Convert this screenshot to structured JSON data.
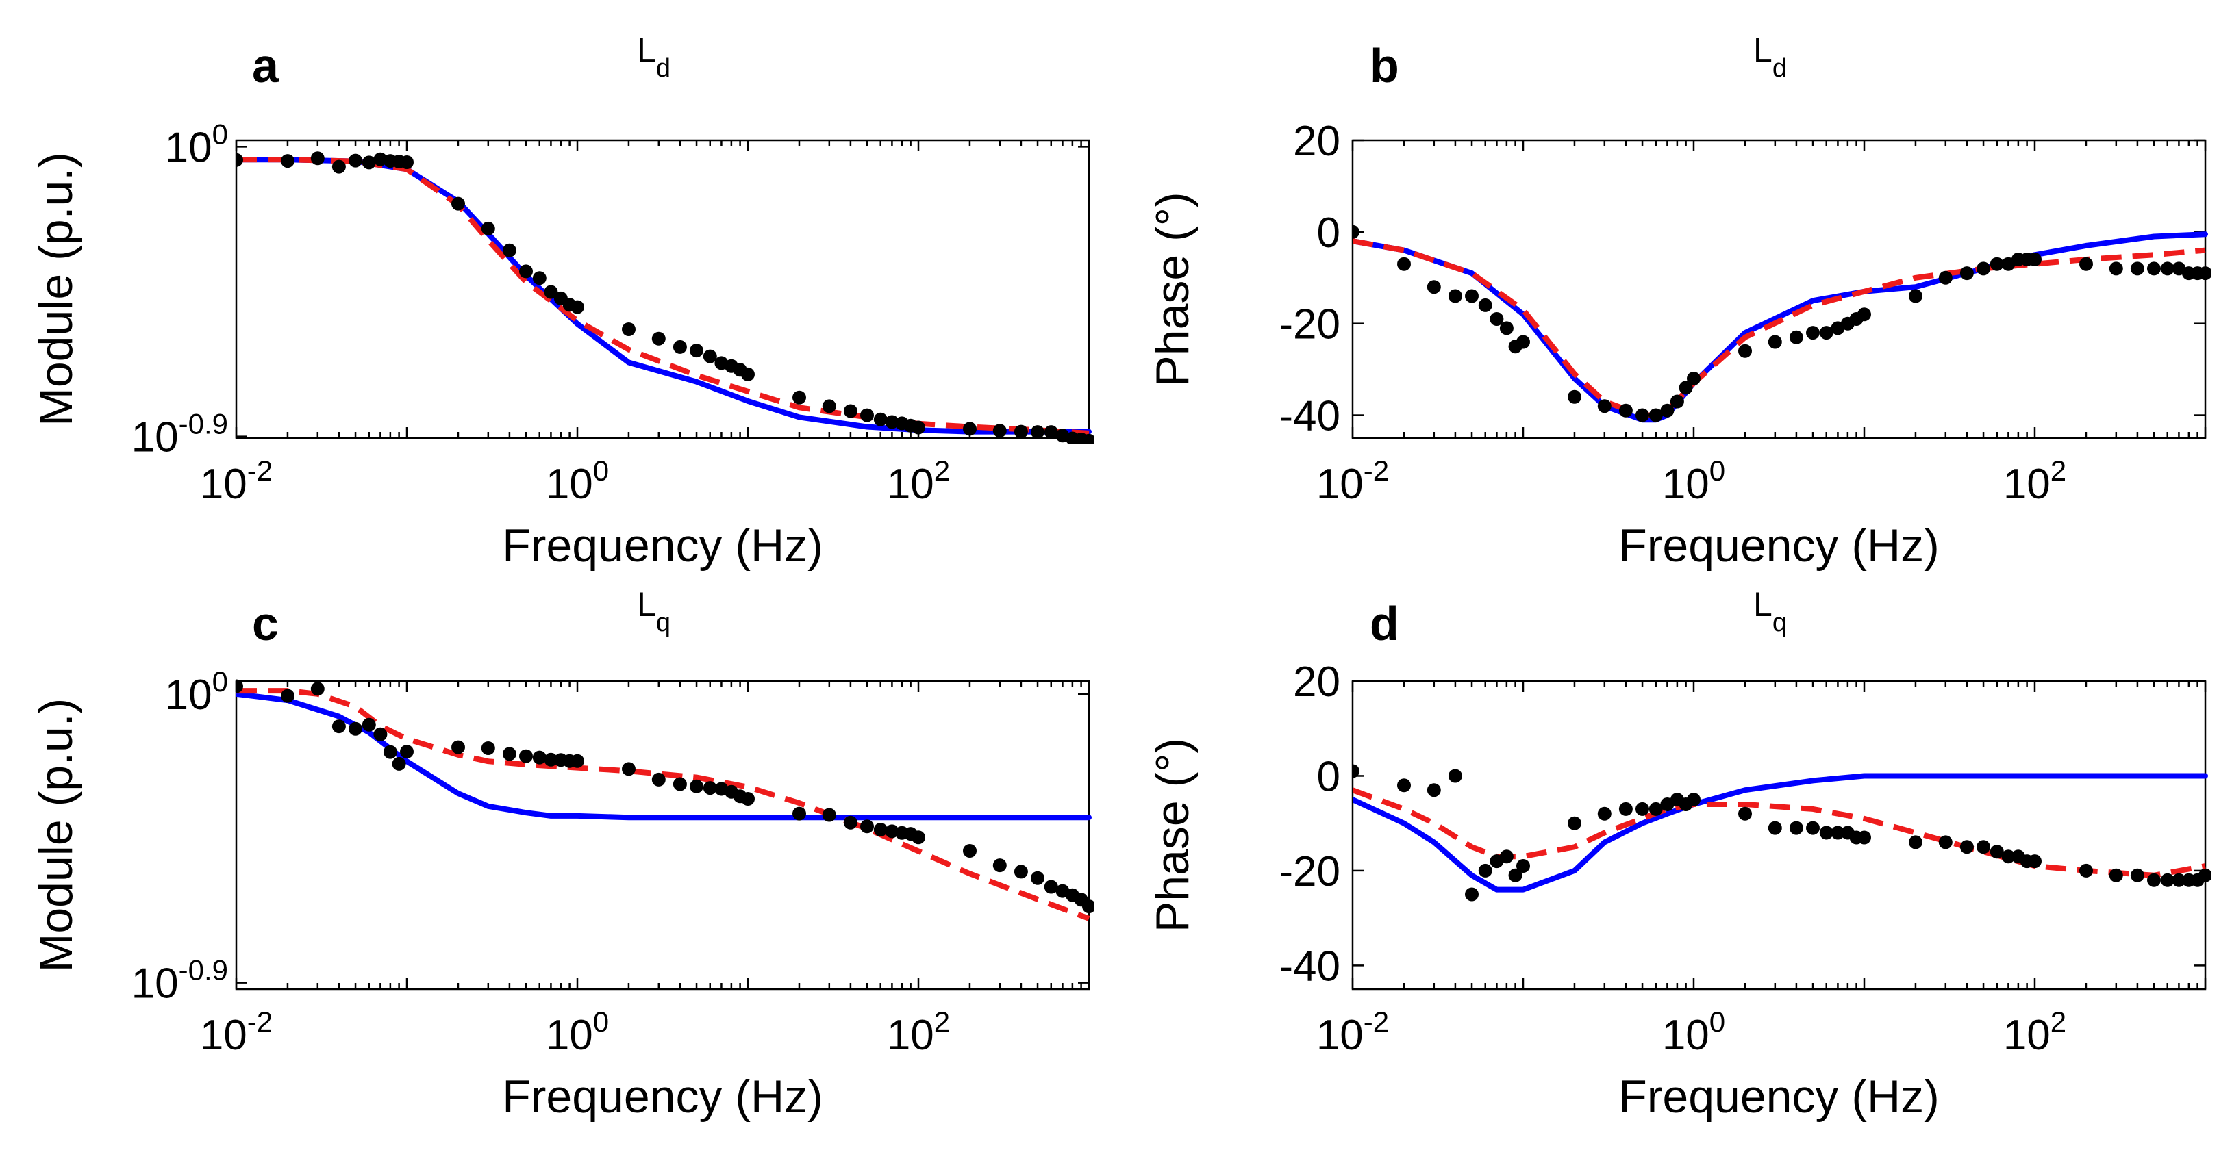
{
  "figure": {
    "colors": {
      "measured": "#000000",
      "model_a": "#0000ff",
      "model_b": "#ee1c1c"
    }
  },
  "chart_data": [
    {
      "type": "line",
      "panel": "a",
      "title": "L",
      "title_sub": "d",
      "xlabel": "Frequency (Hz)",
      "ylabel": "Module (p.u.)",
      "xscale": "log",
      "yscale": "log",
      "xlim": [
        0.01,
        1000
      ],
      "ylim_log10": [
        -0.905,
        0.02
      ],
      "xticks": [
        {
          "base": "10",
          "exp": "-2",
          "value": 0.01
        },
        {
          "base": "10",
          "exp": "0",
          "value": 1
        },
        {
          "base": "10",
          "exp": "2",
          "value": 100
        }
      ],
      "yticks": [
        {
          "base": "10",
          "exp": "0",
          "log10": 0
        },
        {
          "base": "10",
          "exp": "-0.9",
          "log10": -0.9
        }
      ],
      "grid": false,
      "series": [
        {
          "style": "dots",
          "x": [
            0.01,
            0.02,
            0.03,
            0.04,
            0.05,
            0.06,
            0.07,
            0.08,
            0.09,
            0.1,
            0.2,
            0.3,
            0.4,
            0.5,
            0.6,
            0.7,
            0.8,
            0.9,
            1,
            2,
            3,
            4,
            5,
            6,
            7,
            8,
            9,
            10,
            20,
            30,
            40,
            50,
            60,
            70,
            80,
            90,
            100,
            200,
            300,
            400,
            500,
            600,
            700,
            800,
            900,
            1000
          ],
          "y": [
            -0.041,
            -0.044,
            -0.036,
            -0.062,
            -0.043,
            -0.049,
            -0.039,
            -0.044,
            -0.046,
            -0.048,
            -0.177,
            -0.254,
            -0.322,
            -0.387,
            -0.408,
            -0.451,
            -0.471,
            -0.491,
            -0.498,
            -0.567,
            -0.596,
            -0.622,
            -0.633,
            -0.651,
            -0.672,
            -0.681,
            -0.693,
            -0.707,
            -0.779,
            -0.806,
            -0.821,
            -0.834,
            -0.847,
            -0.855,
            -0.859,
            -0.866,
            -0.872,
            -0.876,
            -0.882,
            -0.885,
            -0.886,
            -0.886,
            -0.897,
            -0.906,
            -0.909,
            -0.913
          ]
        },
        {
          "style": "solid",
          "x": [
            0.01,
            0.02,
            0.05,
            0.1,
            0.2,
            0.3,
            0.5,
            1,
            2,
            5,
            10,
            20,
            50,
            100,
            200,
            500,
            1000
          ],
          "y": [
            -0.04,
            -0.04,
            -0.045,
            -0.07,
            -0.17,
            -0.27,
            -0.4,
            -0.55,
            -0.67,
            -0.73,
            -0.79,
            -0.84,
            -0.87,
            -0.88,
            -0.885,
            -0.885,
            -0.885
          ]
        },
        {
          "style": "dashed",
          "x": [
            0.01,
            0.02,
            0.05,
            0.1,
            0.2,
            0.3,
            0.5,
            1,
            2,
            5,
            10,
            20,
            50,
            100,
            200,
            500,
            1000
          ],
          "y": [
            -0.04,
            -0.04,
            -0.045,
            -0.07,
            -0.18,
            -0.29,
            -0.42,
            -0.54,
            -0.63,
            -0.71,
            -0.76,
            -0.81,
            -0.84,
            -0.86,
            -0.87,
            -0.88,
            -0.89
          ]
        }
      ]
    },
    {
      "type": "line",
      "panel": "b",
      "title": "L",
      "title_sub": "d",
      "xlabel": "Frequency (Hz)",
      "ylabel": "Phase (°)",
      "xscale": "log",
      "yscale": "linear",
      "xlim": [
        0.01,
        1000
      ],
      "ylim": [
        -45,
        20
      ],
      "xticks": [
        {
          "base": "10",
          "exp": "-2",
          "value": 0.01
        },
        {
          "base": "10",
          "exp": "0",
          "value": 1
        },
        {
          "base": "10",
          "exp": "2",
          "value": 100
        }
      ],
      "yticks": [
        20,
        0,
        -20,
        -40
      ],
      "grid": false,
      "series": [
        {
          "style": "dots",
          "x": [
            0.01,
            0.02,
            0.03,
            0.04,
            0.05,
            0.06,
            0.07,
            0.08,
            0.09,
            0.1,
            0.2,
            0.3,
            0.4,
            0.5,
            0.6,
            0.7,
            0.8,
            0.9,
            1,
            2,
            3,
            4,
            5,
            6,
            7,
            8,
            9,
            10,
            20,
            30,
            40,
            50,
            60,
            70,
            80,
            90,
            100,
            200,
            300,
            400,
            500,
            600,
            700,
            800,
            900,
            1000
          ],
          "y": [
            0,
            -7,
            -12,
            -14,
            -14,
            -16,
            -19,
            -21,
            -25,
            -24,
            -36,
            -38,
            -39,
            -40,
            -40,
            -39,
            -37,
            -34,
            -32,
            -26,
            -24,
            -23,
            -22,
            -22,
            -21,
            -20,
            -19,
            -18,
            -14,
            -10,
            -9,
            -8,
            -7,
            -7,
            -6,
            -6,
            -6,
            -7,
            -8,
            -8,
            -8,
            -8,
            -8,
            -9,
            -9,
            -9
          ]
        },
        {
          "style": "solid",
          "x": [
            0.01,
            0.02,
            0.05,
            0.1,
            0.2,
            0.3,
            0.5,
            0.6,
            0.7,
            1,
            2,
            5,
            10,
            20,
            50,
            100,
            200,
            500,
            1000
          ],
          "y": [
            -2,
            -4,
            -9,
            -18,
            -32,
            -38,
            -41,
            -41,
            -40,
            -33,
            -22,
            -15,
            -13,
            -12,
            -8,
            -5,
            -3,
            -1,
            -0.5
          ]
        },
        {
          "style": "dashed",
          "x": [
            0.01,
            0.02,
            0.05,
            0.1,
            0.2,
            0.3,
            0.5,
            0.6,
            0.7,
            1,
            2,
            5,
            10,
            20,
            50,
            100,
            200,
            500,
            1000
          ],
          "y": [
            -2,
            -4,
            -9,
            -17,
            -31,
            -37,
            -40,
            -40,
            -39,
            -33,
            -23,
            -16,
            -13,
            -10,
            -8,
            -7,
            -6,
            -5,
            -4
          ]
        }
      ]
    },
    {
      "type": "line",
      "panel": "c",
      "title": "L",
      "title_sub": "q",
      "xlabel": "Frequency (Hz)",
      "ylabel": "Module (p.u.)",
      "xscale": "log",
      "yscale": "log",
      "xlim": [
        0.01,
        1000
      ],
      "ylim_log10": [
        -0.92,
        0.04
      ],
      "xticks": [
        {
          "base": "10",
          "exp": "-2",
          "value": 0.01
        },
        {
          "base": "10",
          "exp": "0",
          "value": 1
        },
        {
          "base": "10",
          "exp": "2",
          "value": 100
        }
      ],
      "yticks": [
        {
          "base": "10",
          "exp": "0",
          "log10": 0
        },
        {
          "base": "10",
          "exp": "-0.9",
          "log10": -0.9
        }
      ],
      "grid": false,
      "series": [
        {
          "style": "dots",
          "x": [
            0.01,
            0.02,
            0.03,
            0.04,
            0.05,
            0.06,
            0.07,
            0.08,
            0.09,
            0.1,
            0.2,
            0.3,
            0.4,
            0.5,
            0.6,
            0.7,
            0.8,
            0.9,
            1,
            2,
            3,
            4,
            5,
            6,
            7,
            8,
            9,
            10,
            20,
            30,
            40,
            50,
            60,
            70,
            80,
            90,
            100,
            200,
            300,
            400,
            500,
            600,
            700,
            800,
            900,
            1000
          ],
          "y": [
            0.024,
            -0.006,
            0.016,
            -0.101,
            -0.109,
            -0.096,
            -0.126,
            -0.181,
            -0.218,
            -0.18,
            -0.166,
            -0.169,
            -0.187,
            -0.194,
            -0.198,
            -0.205,
            -0.206,
            -0.209,
            -0.209,
            -0.234,
            -0.267,
            -0.281,
            -0.288,
            -0.293,
            -0.296,
            -0.305,
            -0.319,
            -0.327,
            -0.373,
            -0.377,
            -0.401,
            -0.413,
            -0.423,
            -0.428,
            -0.433,
            -0.436,
            -0.447,
            -0.489,
            -0.534,
            -0.554,
            -0.574,
            -0.601,
            -0.614,
            -0.627,
            -0.641,
            -0.662
          ]
        },
        {
          "style": "solid",
          "x": [
            0.01,
            0.02,
            0.04,
            0.06,
            0.1,
            0.2,
            0.3,
            0.5,
            0.7,
            1,
            2,
            5,
            10,
            100,
            1000
          ],
          "y": [
            0,
            -0.02,
            -0.07,
            -0.12,
            -0.21,
            -0.31,
            -0.35,
            -0.37,
            -0.38,
            -0.38,
            -0.385,
            -0.385,
            -0.385,
            -0.385,
            -0.385
          ]
        },
        {
          "style": "dashed",
          "x": [
            0.01,
            0.02,
            0.03,
            0.05,
            0.07,
            0.1,
            0.2,
            0.3,
            0.5,
            1,
            2,
            5,
            10,
            20,
            50,
            100,
            200,
            500,
            1000
          ],
          "y": [
            0.01,
            0.01,
            0,
            -0.04,
            -0.1,
            -0.14,
            -0.19,
            -0.21,
            -0.22,
            -0.23,
            -0.24,
            -0.26,
            -0.29,
            -0.34,
            -0.42,
            -0.49,
            -0.56,
            -0.64,
            -0.7
          ]
        }
      ]
    },
    {
      "type": "line",
      "panel": "d",
      "title": "L",
      "title_sub": "q",
      "xlabel": "Frequency (Hz)",
      "ylabel": "Phase (°)",
      "xscale": "log",
      "yscale": "linear",
      "xlim": [
        0.01,
        1000
      ],
      "ylim": [
        -45,
        20
      ],
      "xticks": [
        {
          "base": "10",
          "exp": "-2",
          "value": 0.01
        },
        {
          "base": "10",
          "exp": "0",
          "value": 1
        },
        {
          "base": "10",
          "exp": "2",
          "value": 100
        }
      ],
      "yticks": [
        20,
        0,
        -20,
        -40
      ],
      "grid": false,
      "series": [
        {
          "style": "dots",
          "x": [
            0.01,
            0.02,
            0.03,
            0.04,
            0.05,
            0.06,
            0.07,
            0.08,
            0.09,
            0.1,
            0.2,
            0.3,
            0.4,
            0.5,
            0.6,
            0.7,
            0.8,
            0.9,
            1,
            2,
            3,
            4,
            5,
            6,
            7,
            8,
            9,
            10,
            20,
            30,
            40,
            50,
            60,
            70,
            80,
            90,
            100,
            200,
            300,
            400,
            500,
            600,
            700,
            800,
            900,
            1000
          ],
          "y": [
            1,
            -2,
            -3,
            0,
            -25,
            -20,
            -18,
            -17,
            -21,
            -19,
            -10,
            -8,
            -7,
            -7,
            -7,
            -6,
            -5,
            -6,
            -5,
            -8,
            -11,
            -11,
            -11,
            -12,
            -12,
            -12,
            -13,
            -13,
            -14,
            -14,
            -15,
            -15,
            -16,
            -17,
            -17,
            -18,
            -18,
            -20,
            -21,
            -21,
            -22,
            -22,
            -22,
            -22,
            -22,
            -21
          ]
        },
        {
          "style": "solid",
          "x": [
            0.01,
            0.02,
            0.03,
            0.05,
            0.07,
            0.1,
            0.2,
            0.3,
            0.5,
            0.7,
            1,
            2,
            5,
            10,
            20,
            100,
            1000
          ],
          "y": [
            -5,
            -10,
            -14,
            -21,
            -24,
            -24,
            -20,
            -14,
            -10,
            -8,
            -6,
            -3,
            -1,
            0,
            0,
            0,
            0
          ]
        },
        {
          "style": "dashed",
          "x": [
            0.01,
            0.02,
            0.03,
            0.05,
            0.07,
            0.1,
            0.2,
            0.3,
            0.5,
            0.7,
            1,
            2,
            5,
            10,
            20,
            50,
            100,
            200,
            500,
            1000
          ],
          "y": [
            -3,
            -7,
            -10,
            -15,
            -17,
            -17,
            -15,
            -12,
            -9,
            -7,
            -6,
            -6,
            -7,
            -9,
            -12,
            -16,
            -19,
            -20,
            -21,
            -19
          ]
        }
      ]
    }
  ]
}
